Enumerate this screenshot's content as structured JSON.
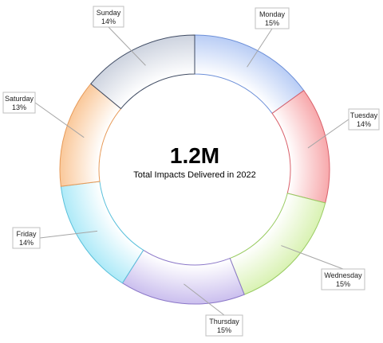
{
  "center": {
    "headline": "1.2M",
    "caption": "Total Impacts Delivered in 2022"
  },
  "chart_data": {
    "type": "pie",
    "variant": "donut",
    "categories": [
      "Monday",
      "Tuesday",
      "Wednesday",
      "Thursday",
      "Friday",
      "Saturday",
      "Sunday"
    ],
    "values": [
      15,
      14,
      15,
      15,
      14,
      13,
      14
    ],
    "value_labels": [
      "15%",
      "14%",
      "15%",
      "15%",
      "14%",
      "13%",
      "14%"
    ],
    "colors": [
      "#b9cdf5",
      "#f7a8ab",
      "#d9f2b3",
      "#cbbfee",
      "#aeeaf8",
      "#fac89a",
      "#cdd3df"
    ],
    "edge_colors": [
      "#6c8fd8",
      "#d9606a",
      "#9acc63",
      "#8b77c8",
      "#5ac0db",
      "#e79a58",
      "#3f4b63"
    ],
    "legend": "none",
    "title": ""
  }
}
